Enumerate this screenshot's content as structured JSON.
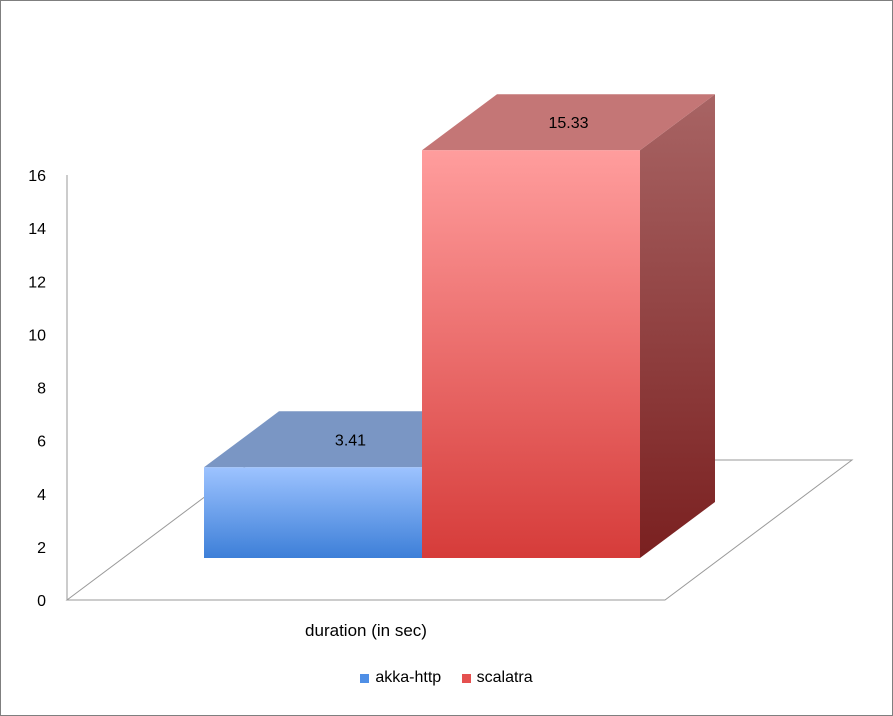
{
  "chart_data": {
    "type": "bar",
    "title": "",
    "categories": [
      "duration (in sec)"
    ],
    "series": [
      {
        "name": "akka-http",
        "values": [
          3.41
        ],
        "color": "#5b9bea"
      },
      {
        "name": "scalatra",
        "values": [
          15.33
        ],
        "color": "#e8605f"
      }
    ],
    "ylim": [
      0,
      16
    ],
    "yticks": [
      "0",
      "2",
      "4",
      "6",
      "8",
      "10",
      "12",
      "14",
      "16"
    ],
    "data_labels": [
      "3.41",
      "15.33"
    ],
    "legend_position": "bottom",
    "style": "3d-column"
  }
}
